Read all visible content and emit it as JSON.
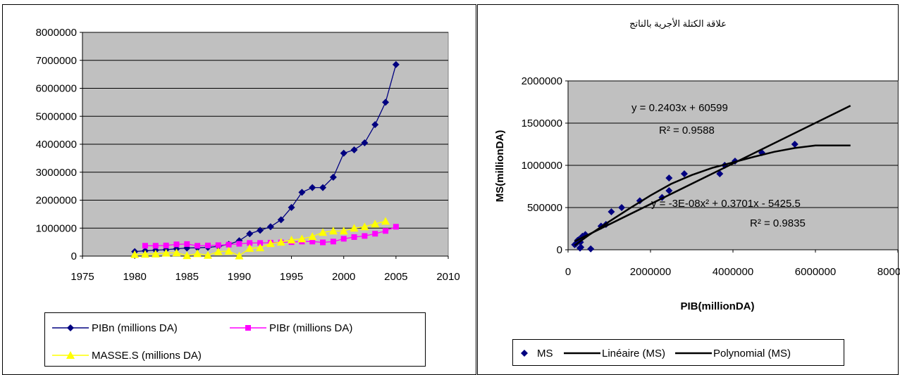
{
  "chart_data": [
    {
      "type": "line",
      "title": "",
      "xlabel": "",
      "ylabel": "",
      "xlim": [
        1975,
        2010
      ],
      "ylim": [
        0,
        8000000
      ],
      "x_ticks": [
        "1975",
        "1980",
        "1985",
        "1990",
        "1995",
        "2000",
        "2005",
        "2010"
      ],
      "y_ticks": [
        "0",
        "1000000",
        "2000000",
        "3000000",
        "4000000",
        "5000000",
        "6000000",
        "7000000",
        "8000000"
      ],
      "grid": "horizontal",
      "legend_position": "bottom",
      "background": "#C0C0C0",
      "series": [
        {
          "name": "PIBn (millions DA)",
          "color": "#000080",
          "marker": "diamond",
          "x": [
            1980,
            1981,
            1982,
            1983,
            1984,
            1985,
            1986,
            1987,
            1988,
            1989,
            1990,
            1991,
            1992,
            1993,
            1994,
            1995,
            1996,
            1997,
            1998,
            1999,
            2000,
            2001,
            2002,
            2003,
            2004,
            2005
          ],
          "values": [
            160000,
            190000,
            210000,
            230000,
            260000,
            290000,
            300000,
            310000,
            350000,
            420000,
            550000,
            800000,
            920000,
            1050000,
            1300000,
            1740000,
            2280000,
            2450000,
            2450000,
            2820000,
            3680000,
            3800000,
            4050000,
            4700000,
            5500000,
            6850000
          ]
        },
        {
          "name": "PIBr (millions DA)",
          "color": "#FF00FF",
          "marker": "square",
          "x": [
            1981,
            1982,
            1983,
            1984,
            1985,
            1986,
            1987,
            1988,
            1989,
            1990,
            1991,
            1992,
            1993,
            1994,
            1995,
            1996,
            1997,
            1998,
            1999,
            2000,
            2001,
            2002,
            2003,
            2004,
            2005
          ],
          "values": [
            370000,
            370000,
            380000,
            420000,
            430000,
            370000,
            380000,
            390000,
            410000,
            440000,
            470000,
            470000,
            480000,
            490000,
            500000,
            520000,
            520000,
            490000,
            520000,
            620000,
            680000,
            720000,
            800000,
            900000,
            1050000
          ]
        },
        {
          "name": "MASSE.S  (millions DA)",
          "color": "#FFFF00",
          "marker": "triangle",
          "x": [
            1980,
            1981,
            1982,
            1983,
            1984,
            1985,
            1986,
            1987,
            1988,
            1989,
            1990,
            1991,
            1992,
            1993,
            1994,
            1995,
            1996,
            1997,
            1998,
            1999,
            2000,
            2001,
            2002,
            2003,
            2004
          ],
          "values": [
            60000,
            70000,
            80000,
            110000,
            120000,
            20000,
            90000,
            30000,
            160000,
            180000,
            10000,
            280000,
            300000,
            450000,
            500000,
            580000,
            620000,
            700000,
            850000,
            900000,
            900000,
            1000000,
            1050000,
            1150000,
            1250000
          ]
        }
      ]
    },
    {
      "type": "scatter",
      "title": "علاقة الكتلة الأجرية بالناتج",
      "xlabel": "PIB(millionDA)",
      "ylabel": "MS(millionDA)",
      "xlim": [
        0,
        8000000
      ],
      "ylim": [
        0,
        2000000
      ],
      "x_ticks": [
        "0",
        "2000000",
        "4000000",
        "6000000",
        "8000000"
      ],
      "y_ticks": [
        "0",
        "500000",
        "1000000",
        "1500000",
        "2000000"
      ],
      "grid": "horizontal",
      "legend_position": "bottom",
      "background": "#C0C0C0",
      "series": [
        {
          "name": "MS",
          "color": "#000080",
          "marker": "diamond",
          "x": [
            160000,
            190000,
            210000,
            230000,
            260000,
            290000,
            300000,
            310000,
            350000,
            420000,
            550000,
            800000,
            920000,
            1050000,
            1300000,
            1740000,
            2280000,
            2450000,
            2450000,
            2820000,
            3680000,
            3800000,
            4050000,
            4700000,
            5500000
          ],
          "values": [
            60000,
            70000,
            80000,
            110000,
            120000,
            20000,
            90000,
            30000,
            160000,
            180000,
            10000,
            280000,
            300000,
            450000,
            500000,
            580000,
            620000,
            700000,
            850000,
            900000,
            900000,
            1000000,
            1050000,
            1150000,
            1250000
          ]
        },
        {
          "name": "Linéaire (MS)",
          "color": "#000000",
          "type": "line",
          "x": [
            160000,
            6850000
          ],
          "values": [
            99047,
            1706654
          ]
        },
        {
          "name": "Polynomial (MS)",
          "color": "#000000",
          "type": "line",
          "x": [
            160000,
            500000,
            1000000,
            1500000,
            2000000,
            2500000,
            3000000,
            3500000,
            4000000,
            4500000,
            5000000,
            5500000,
            6000000,
            6500000,
            6850000
          ],
          "values": [
            52000,
            172000,
            335000,
            492000,
            643000,
            780000,
            885000,
            970000,
            1035000,
            1100000,
            1160000,
            1205000,
            1235000,
            1235000,
            1235000
          ]
        }
      ],
      "annotations": [
        {
          "text": "y = 0.2403x + 60599"
        },
        {
          "text": "R² = 0.9588"
        },
        {
          "text": "y = -3E-08x² + 0.3701x - 5425.5"
        },
        {
          "text": "R² = 0.9835"
        }
      ]
    }
  ]
}
